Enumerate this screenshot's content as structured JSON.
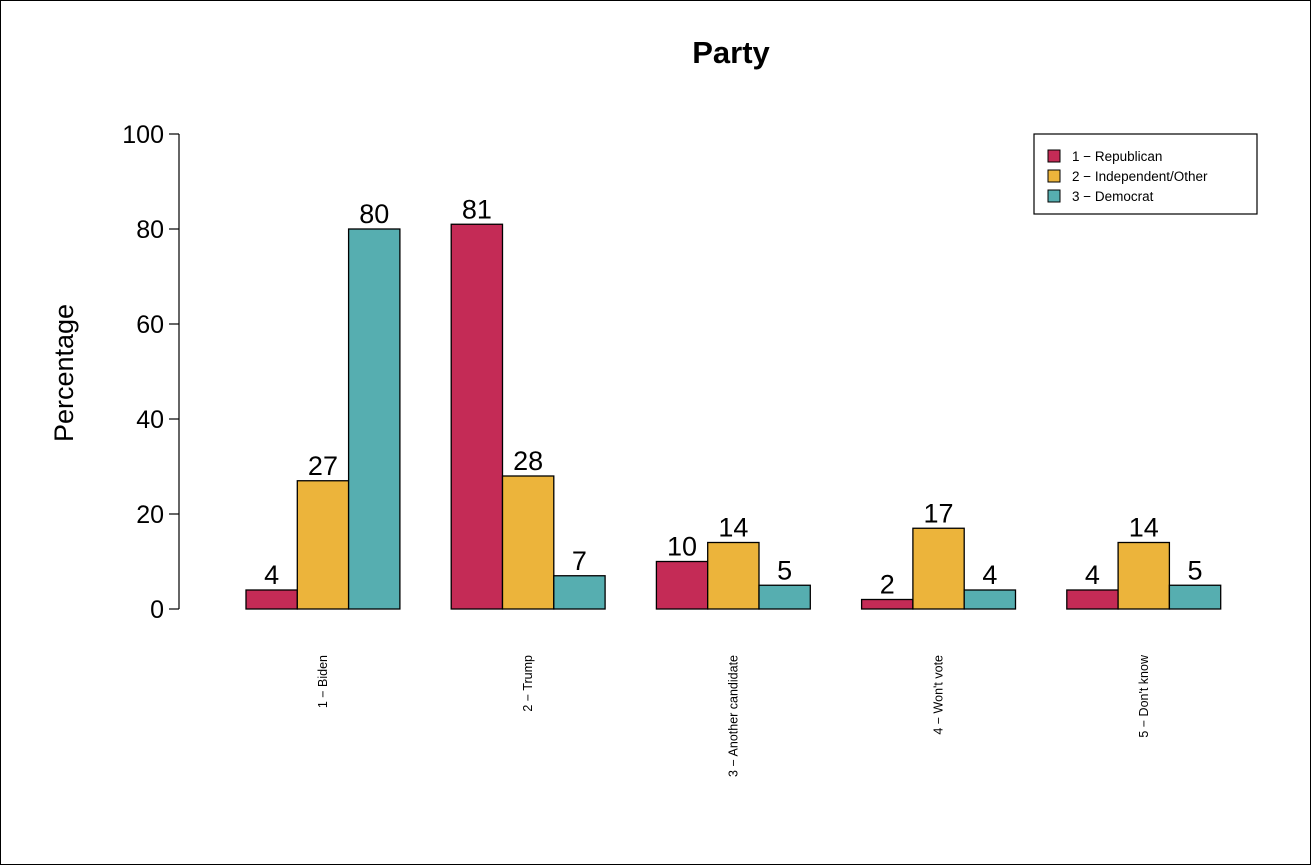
{
  "chart_data": {
    "type": "bar",
    "title": "Party",
    "xlabel": "",
    "ylabel": "Percentage",
    "ylim": [
      0,
      100
    ],
    "yticks": [
      "0",
      "20",
      "40",
      "60",
      "80",
      "100"
    ],
    "grid": false,
    "legend_position": "top-right",
    "categories": [
      "1 − Biden",
      "2 − Trump",
      "3 − Another candidate",
      "4 − Won't vote",
      "5 − Don't know"
    ],
    "series": [
      {
        "name": "1 − Republican",
        "color": "#c42b56",
        "values": [
          4,
          81,
          10,
          2,
          4
        ]
      },
      {
        "name": "2 − Independent/Other",
        "color": "#ecb43b",
        "values": [
          27,
          28,
          14,
          17,
          14
        ]
      },
      {
        "name": "3 − Democrat",
        "color": "#56aeb0",
        "values": [
          80,
          7,
          5,
          4,
          5
        ]
      }
    ],
    "data_labels": [
      [
        "4",
        "81",
        "10",
        "2",
        "4"
      ],
      [
        "27",
        "28",
        "14",
        "17",
        "14"
      ],
      [
        "80",
        "7",
        "5",
        "4",
        "5"
      ]
    ]
  }
}
